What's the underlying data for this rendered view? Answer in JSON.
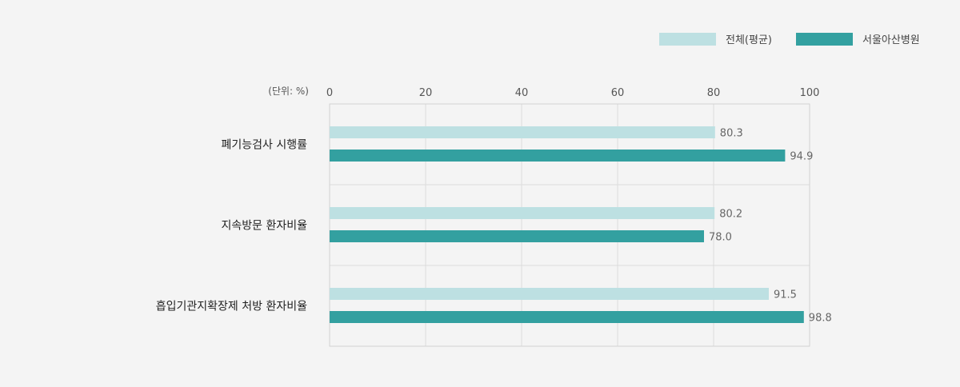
{
  "unit_label": "(단위: %)",
  "colors": {
    "average": "#bde0e2",
    "hospital": "#33a0a0",
    "grid": "#dcdcdc",
    "frame": "#d2d2d2"
  },
  "chart_data": {
    "type": "bar",
    "orientation": "horizontal",
    "categories": [
      "폐기능검사 시행률",
      "지속방문 환자비율",
      "흡입기관지확장제 처방 환자비율"
    ],
    "series": [
      {
        "name": "전체(평균)",
        "values": [
          80.3,
          80.2,
          91.5
        ]
      },
      {
        "name": "서울아산병원",
        "values": [
          94.9,
          78.0,
          98.8
        ]
      }
    ],
    "value_labels": [
      [
        "80.3",
        "94.9"
      ],
      [
        "80.2",
        "78.0"
      ],
      [
        "91.5",
        "98.8"
      ]
    ],
    "xlim": [
      0,
      100
    ],
    "ticks": [
      "0",
      "20",
      "40",
      "60",
      "80",
      "100"
    ],
    "tick_values": [
      0,
      20,
      40,
      60,
      80,
      100
    ],
    "grid": true,
    "legend_position": "top-right"
  }
}
